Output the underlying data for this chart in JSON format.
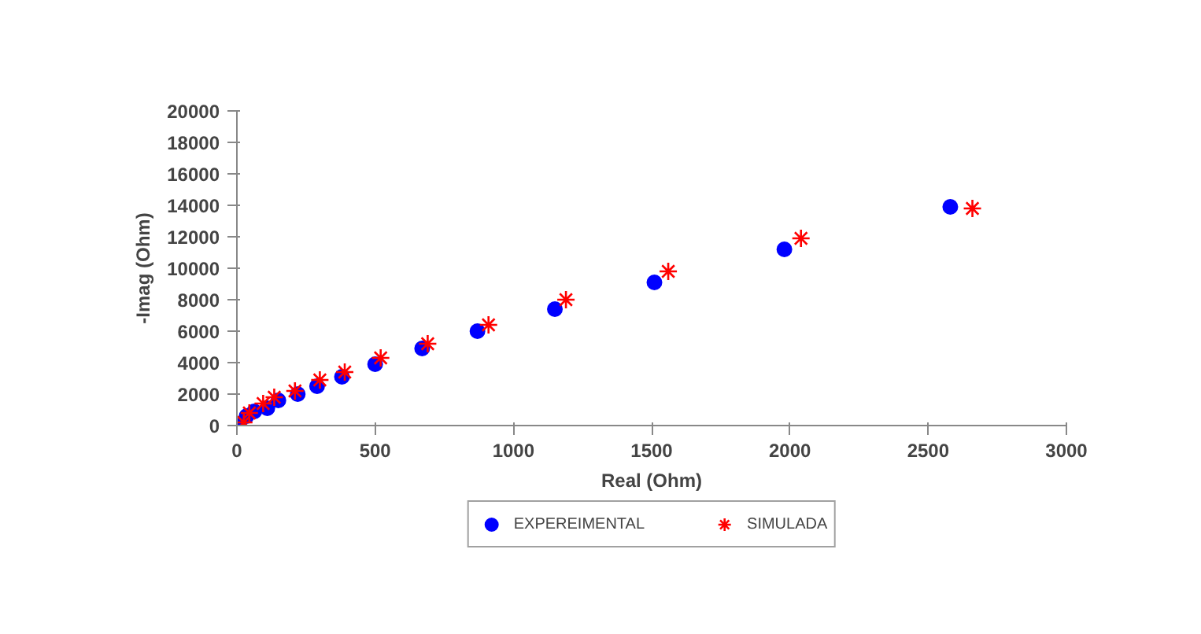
{
  "chart_data": {
    "type": "scatter",
    "xlabel": "Real (Ohm)",
    "ylabel": "-Imag (Ohm)",
    "xlim": [
      0,
      3000
    ],
    "ylim": [
      0,
      20000
    ],
    "xticks": [
      0,
      500,
      1000,
      1500,
      2000,
      2500,
      3000
    ],
    "yticks": [
      0,
      2000,
      4000,
      6000,
      8000,
      10000,
      12000,
      14000,
      16000,
      18000,
      20000
    ],
    "grid": false,
    "legend": "bottom",
    "series": [
      {
        "name": "EXPEREIMENTAL",
        "color": "#0000ff",
        "marker": "circle",
        "x": [
          0,
          35,
          63,
          110,
          150,
          220,
          290,
          380,
          500,
          670,
          870,
          1150,
          1510,
          1980,
          2580
        ],
        "values": [
          0,
          600,
          900,
          1100,
          1600,
          2000,
          2500,
          3100,
          3900,
          4900,
          6000,
          7400,
          9100,
          11200,
          13900
        ]
      },
      {
        "name": "SIMULADA",
        "color": "#ff0000",
        "marker": "cross",
        "x": [
          25,
          45,
          95,
          135,
          210,
          300,
          390,
          520,
          690,
          910,
          1190,
          1560,
          2040,
          2660
        ],
        "values": [
          200,
          800,
          1400,
          1800,
          2200,
          2900,
          3400,
          4300,
          5200,
          6400,
          8000,
          9800,
          11900,
          13800
        ]
      }
    ]
  }
}
